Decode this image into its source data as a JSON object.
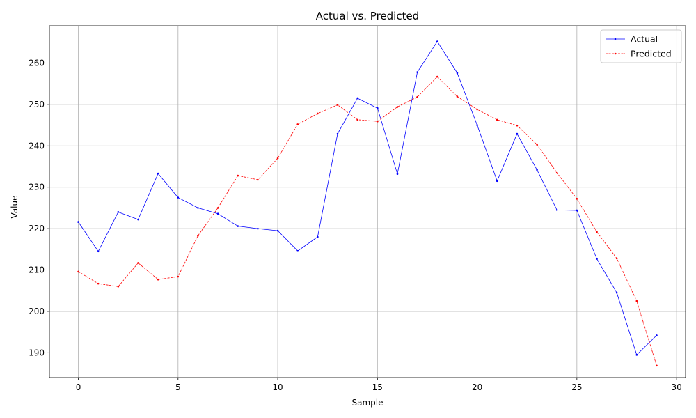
{
  "chart_data": {
    "type": "line",
    "title": "Actual vs. Predicted",
    "xlabel": "Sample",
    "ylabel": "Value",
    "xlim": [
      -1.45,
      30.45
    ],
    "ylim": [
      184.0,
      269.0
    ],
    "xticks": [
      0,
      5,
      10,
      15,
      20,
      25,
      30
    ],
    "yticks": [
      190,
      200,
      210,
      220,
      230,
      240,
      250,
      260
    ],
    "grid": true,
    "legend": "top-right",
    "x": [
      0,
      1,
      2,
      3,
      4,
      5,
      6,
      7,
      8,
      9,
      10,
      11,
      12,
      13,
      14,
      15,
      16,
      17,
      18,
      19,
      20,
      21,
      22,
      23,
      24,
      25,
      26,
      27,
      28,
      29
    ],
    "series": [
      {
        "name": "Actual",
        "color": "#0000ff",
        "style": "solid",
        "values": [
          221.6,
          214.5,
          224.0,
          222.2,
          233.3,
          227.5,
          225.0,
          223.6,
          220.6,
          220.0,
          219.5,
          214.6,
          218.0,
          242.9,
          251.5,
          249.1,
          233.2,
          257.8,
          265.2,
          257.6,
          245.0,
          231.5,
          242.9,
          234.2,
          224.5,
          224.4,
          212.7,
          204.5,
          189.5,
          194.2
        ]
      },
      {
        "name": "Predicted",
        "color": "#ff0000",
        "style": "dashed",
        "values": [
          209.6,
          206.7,
          206.0,
          211.7,
          207.7,
          208.4,
          218.3,
          225.0,
          232.8,
          231.8,
          237.0,
          245.2,
          247.8,
          249.9,
          246.3,
          245.9,
          249.4,
          251.8,
          256.7,
          251.9,
          248.8,
          246.3,
          244.9,
          240.3,
          233.5,
          227.2,
          219.2,
          212.8,
          202.5,
          186.9
        ]
      }
    ]
  }
}
